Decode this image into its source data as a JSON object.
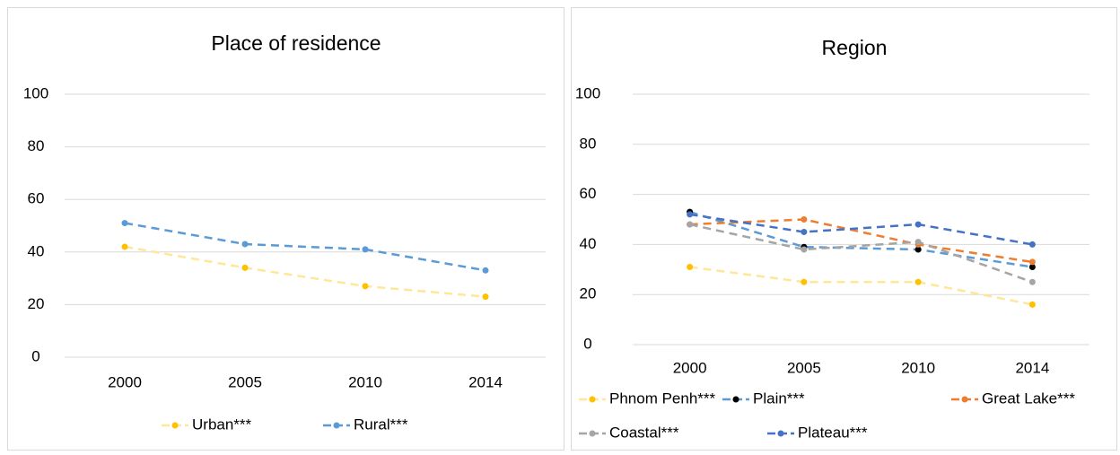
{
  "chart_data": [
    {
      "type": "line",
      "title": "Place of residence",
      "categories": [
        "2000",
        "2005",
        "2010",
        "2014"
      ],
      "series": [
        {
          "name": "Urban***",
          "color": "#ffe699",
          "marker_color": "#ffc000",
          "values": [
            42,
            34,
            27,
            23
          ]
        },
        {
          "name": "Rural***",
          "color": "#5b9bd5",
          "marker_color": "#5b9bd5",
          "values": [
            51,
            43,
            41,
            33
          ]
        }
      ],
      "ylim": [
        0,
        100
      ],
      "yticks": [
        0,
        20,
        40,
        60,
        80,
        100
      ],
      "grid": true
    },
    {
      "type": "line",
      "title": "Region",
      "categories": [
        "2000",
        "2005",
        "2010",
        "2014"
      ],
      "series": [
        {
          "name": "Phnom Penh***",
          "color": "#ffe699",
          "marker_color": "#ffc000",
          "values": [
            31,
            25,
            25,
            16
          ]
        },
        {
          "name": "Plain***",
          "color": "#5b9bd5",
          "marker_color": "#000000",
          "values": [
            53,
            39,
            38,
            31
          ]
        },
        {
          "name": "Great Lake***",
          "color": "#ed7d31",
          "marker_color": "#ed7d31",
          "values": [
            48,
            50,
            40,
            33
          ]
        },
        {
          "name": "Coastal***",
          "color": "#a5a5a5",
          "marker_color": "#a5a5a5",
          "values": [
            48,
            38,
            41,
            25
          ]
        },
        {
          "name": "Plateau***",
          "color": "#4472c4",
          "marker_color": "#4472c4",
          "values": [
            52,
            45,
            48,
            40
          ]
        }
      ],
      "ylim": [
        0,
        100
      ],
      "yticks": [
        0,
        20,
        40,
        60,
        80,
        100
      ],
      "grid": true
    }
  ]
}
